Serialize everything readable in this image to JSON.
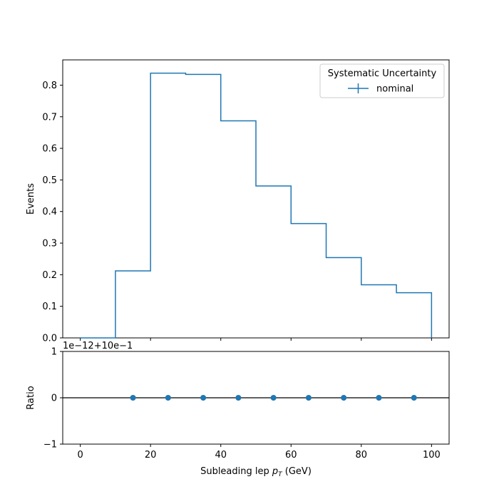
{
  "chart_data": [
    {
      "type": "step",
      "ylabel": "Events",
      "xlim": [
        -5,
        105
      ],
      "ylim": [
        0,
        0.88
      ],
      "x_ticks": [
        0,
        20,
        40,
        60,
        80,
        100
      ],
      "y_ticks": [
        0.0,
        0.1,
        0.2,
        0.3,
        0.4,
        0.5,
        0.6,
        0.7,
        0.8
      ],
      "y_tick_labels": [
        "0.0",
        "0.1",
        "0.2",
        "0.3",
        "0.4",
        "0.5",
        "0.6",
        "0.7",
        "0.8"
      ],
      "bin_edges": [
        0,
        10,
        20,
        30,
        40,
        50,
        60,
        70,
        80,
        90,
        100
      ],
      "series": [
        {
          "name": "nominal",
          "color": "#1f77b4",
          "values": [
            0.0,
            0.212,
            0.838,
            0.834,
            0.687,
            0.481,
            0.362,
            0.254,
            0.168,
            0.143
          ]
        }
      ],
      "legend": {
        "title": "Systematic Uncertainty",
        "position": "top-right"
      }
    },
    {
      "type": "scatter",
      "ylabel": "Ratio",
      "xlabel_pre": "Subleading lep ",
      "xlabel_var": "p",
      "xlabel_sub": "T",
      "xlabel_post": " (GeV)",
      "offset_text": "1e−12+10e−1",
      "xlim": [
        -5,
        105
      ],
      "ylim": [
        -1,
        1
      ],
      "x_ticks": [
        0,
        20,
        40,
        60,
        80,
        100
      ],
      "y_ticks": [
        -1,
        0,
        1
      ],
      "y_tick_labels": [
        "−1",
        "0",
        "1"
      ],
      "reference_line": 0,
      "series": [
        {
          "name": "nominal",
          "color": "#1f77b4",
          "x": [
            15,
            25,
            35,
            45,
            55,
            65,
            75,
            85,
            95
          ],
          "y": [
            0,
            0,
            0,
            0,
            0,
            0,
            0,
            0,
            0
          ]
        }
      ]
    }
  ]
}
